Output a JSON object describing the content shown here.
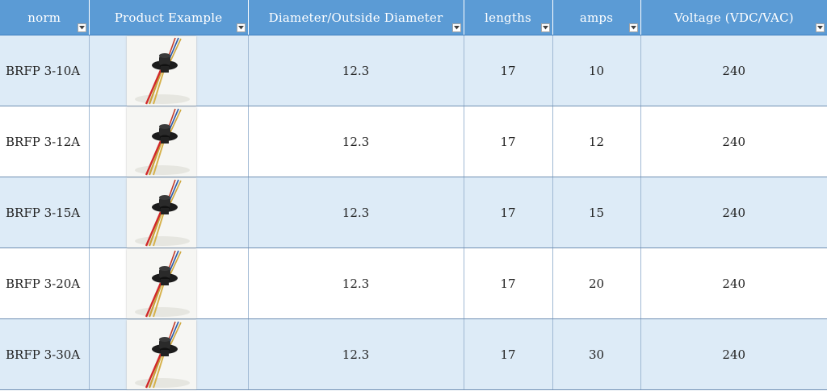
{
  "columns": [
    {
      "label": "norm",
      "icon": "filter-dropdown-icon"
    },
    {
      "label": "Product Example",
      "icon": "filter-dropdown-icon"
    },
    {
      "label": "Diameter/Outside Diameter",
      "icon": "filter-dropdown-icon"
    },
    {
      "label": "lengths",
      "icon": "filter-dropdown-icon"
    },
    {
      "label": "amps",
      "icon": "filter-dropdown-icon"
    },
    {
      "label": "Voltage (VDC/VAC)",
      "icon": "filter-dropdown-icon"
    }
  ],
  "rows": [
    {
      "norm": "BRFP 3-10A",
      "image": "slip-ring-product-icon",
      "diameter": "12.3",
      "length": "17",
      "amps": "10",
      "voltage": "240"
    },
    {
      "norm": "BRFP 3-12A",
      "image": "slip-ring-product-icon",
      "diameter": "12.3",
      "length": "17",
      "amps": "12",
      "voltage": "240"
    },
    {
      "norm": "BRFP 3-15A",
      "image": "slip-ring-product-icon",
      "diameter": "12.3",
      "length": "17",
      "amps": "15",
      "voltage": "240"
    },
    {
      "norm": "BRFP 3-20A",
      "image": "slip-ring-product-icon",
      "diameter": "12.3",
      "length": "17",
      "amps": "20",
      "voltage": "240"
    },
    {
      "norm": "BRFP 3-30A",
      "image": "slip-ring-product-icon",
      "diameter": "12.3",
      "length": "17",
      "amps": "30",
      "voltage": "240"
    }
  ],
  "colors": {
    "header_bg": "#5b9bd5",
    "header_text": "#ffffff",
    "band_row": "#ddebf7",
    "plain_row": "#ffffff",
    "grid_line": "#9fb8d3"
  }
}
